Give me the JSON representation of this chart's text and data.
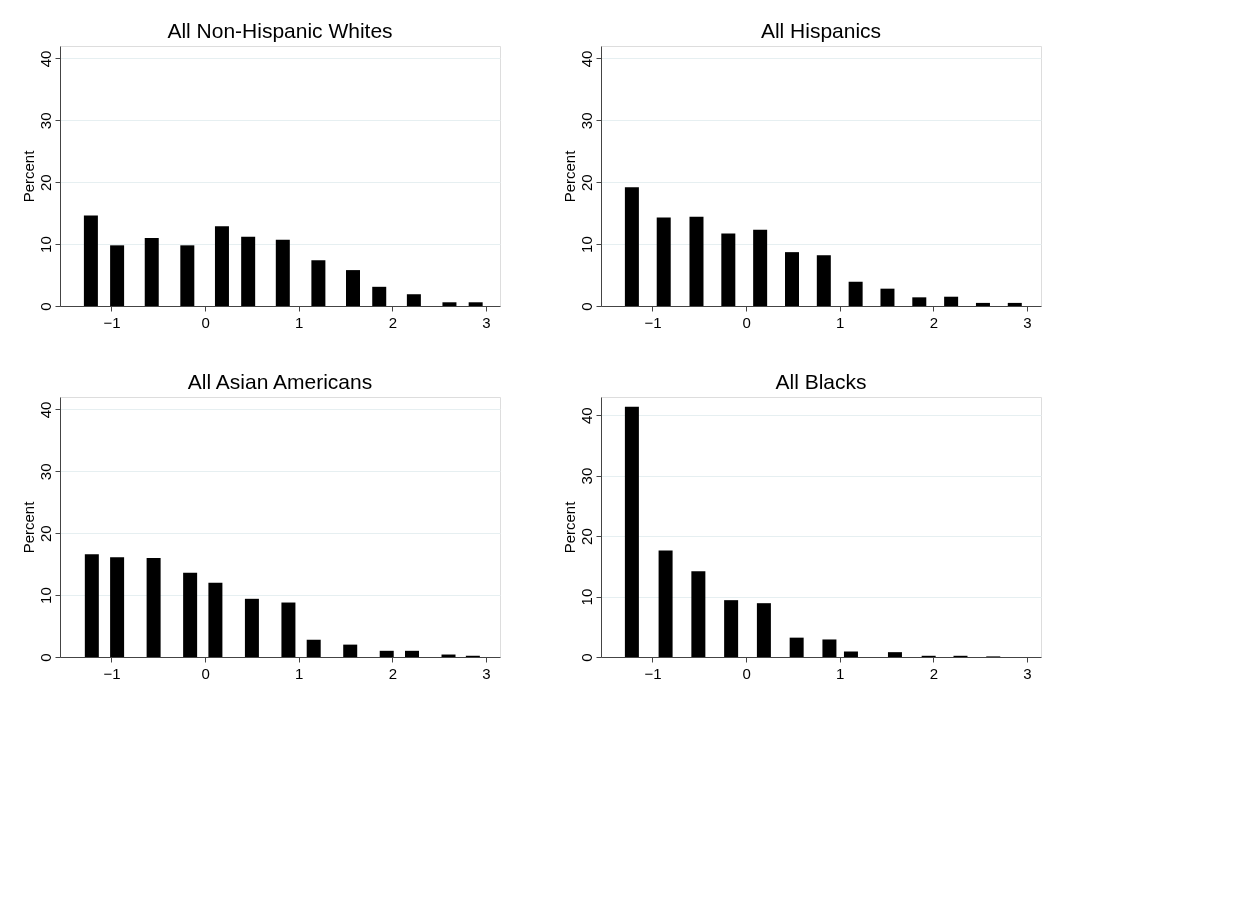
{
  "chart_data": [
    {
      "type": "bar",
      "title": "All Non-Hispanic Whites",
      "ylabel": "Percent",
      "x": [
        -1.22,
        -0.94,
        -0.57,
        -0.19,
        0.18,
        0.46,
        0.83,
        1.21,
        1.58,
        1.86,
        2.23,
        2.61,
        2.89
      ],
      "values": [
        14.6,
        9.8,
        11.0,
        9.8,
        12.9,
        11.2,
        10.7,
        7.4,
        5.8,
        3.1,
        1.9,
        0.6,
        0.6
      ],
      "color": "#000000",
      "xlim": [
        -1.55,
        3.15
      ],
      "xticks": [
        -1,
        0,
        1,
        2,
        3
      ],
      "ylim": [
        0,
        42
      ],
      "yticks": [
        0,
        10,
        20,
        30,
        40
      ],
      "grid": "y"
    },
    {
      "type": "bar",
      "title": "All Hispanics",
      "ylabel": "Percent",
      "x": [
        -1.22,
        -0.88,
        -0.53,
        -0.19,
        0.15,
        0.49,
        0.83,
        1.17,
        1.51,
        1.85,
        2.19,
        2.53,
        2.87
      ],
      "values": [
        19.2,
        14.3,
        14.4,
        11.7,
        12.3,
        8.7,
        8.2,
        3.9,
        2.8,
        1.4,
        1.5,
        0.5,
        0.5
      ],
      "color": "#000000",
      "xlim": [
        -1.55,
        3.15
      ],
      "xticks": [
        -1,
        0,
        1,
        2,
        3
      ],
      "ylim": [
        0,
        42
      ],
      "yticks": [
        0,
        10,
        20,
        30,
        40
      ],
      "grid": "y"
    },
    {
      "type": "bar",
      "title": "All Asian Americans",
      "ylabel": "Percent",
      "x": [
        -1.21,
        -0.94,
        -0.55,
        -0.16,
        0.11,
        0.5,
        0.89,
        1.16,
        1.55,
        1.94,
        2.21,
        2.6,
        2.86
      ],
      "values": [
        16.6,
        16.1,
        16.0,
        13.6,
        12.0,
        9.4,
        8.8,
        2.8,
        2.0,
        1.0,
        1.0,
        0.4,
        0.2
      ],
      "color": "#000000",
      "xlim": [
        -1.55,
        3.15
      ],
      "xticks": [
        -1,
        0,
        1,
        2,
        3
      ],
      "ylim": [
        0,
        42
      ],
      "yticks": [
        0,
        10,
        20,
        30,
        40
      ],
      "grid": "y"
    },
    {
      "type": "bar",
      "title": "All Blacks",
      "ylabel": "Percent",
      "x": [
        -1.22,
        -0.86,
        -0.51,
        -0.16,
        0.19,
        0.54,
        0.89,
        1.12,
        1.59,
        1.95,
        2.29,
        2.64
      ],
      "values": [
        41.4,
        17.6,
        14.2,
        9.4,
        8.9,
        3.2,
        2.9,
        0.9,
        0.8,
        0.2,
        0.2,
        0.1
      ],
      "color": "#000000",
      "xlim": [
        -1.55,
        3.15
      ],
      "xticks": [
        -1,
        0,
        1,
        2,
        3
      ],
      "ylim": [
        0,
        43
      ],
      "yticks": [
        0,
        10,
        20,
        30,
        40
      ],
      "grid": "y"
    }
  ]
}
